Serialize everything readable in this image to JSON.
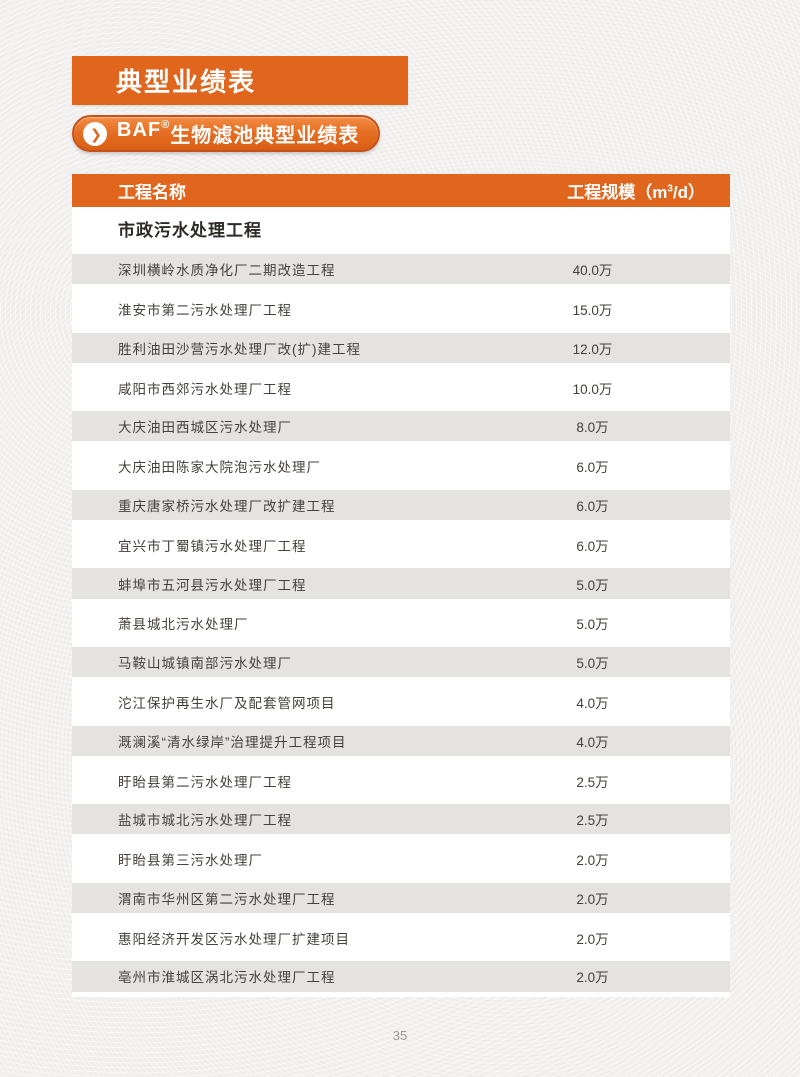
{
  "page": {
    "title": "典型业绩表",
    "subtitle": {
      "brand": "BAF",
      "reg": "®",
      "rest": "生物滤池典型业绩表"
    },
    "page_number": "35"
  },
  "table": {
    "header": {
      "name_label": "工程名称",
      "scale_prefix": "工程规模（m",
      "scale_sup": "3",
      "scale_suffix": "/d）"
    },
    "section": "市政污水处理工程",
    "rows": [
      {
        "name": "深圳横岭水质净化厂二期改造工程",
        "scale": "40.0万"
      },
      {
        "name": "淮安市第二污水处理厂工程",
        "scale": "15.0万"
      },
      {
        "name": "胜利油田沙营污水处理厂改(扩)建工程",
        "scale": "12.0万"
      },
      {
        "name": "咸阳市西郊污水处理厂工程",
        "scale": "10.0万"
      },
      {
        "name": "大庆油田西城区污水处理厂",
        "scale": "8.0万"
      },
      {
        "name": "大庆油田陈家大院泡污水处理厂",
        "scale": "6.0万"
      },
      {
        "name": "重庆唐家桥污水处理厂改扩建工程",
        "scale": "6.0万"
      },
      {
        "name": "宜兴市丁蜀镇污水处理厂工程",
        "scale": "6.0万"
      },
      {
        "name": "蚌埠市五河县污水处理厂工程",
        "scale": "5.0万"
      },
      {
        "name": "萧县城北污水处理厂",
        "scale": "5.0万"
      },
      {
        "name": "马鞍山城镇南部污水处理厂",
        "scale": "5.0万"
      },
      {
        "name": "沱江保护再生水厂及配套管网项目",
        "scale": "4.0万"
      },
      {
        "name": "溉澜溪“清水绿岸”治理提升工程项目",
        "scale": "4.0万"
      },
      {
        "name": "盱眙县第二污水处理厂工程",
        "scale": "2.5万"
      },
      {
        "name": "盐城市城北污水处理厂工程",
        "scale": "2.5万"
      },
      {
        "name": "盱眙县第三污水处理厂",
        "scale": "2.0万"
      },
      {
        "name": "渭南市华州区第二污水处理厂工程",
        "scale": "2.0万"
      },
      {
        "name": "惠阳经济开发区污水处理厂扩建项目",
        "scale": "2.0万"
      },
      {
        "name": "亳州市淮城区涡北污水处理厂工程",
        "scale": "2.0万"
      }
    ]
  },
  "colors": {
    "accent_orange": "#E0661E",
    "pill_border": "#C6521A",
    "row_alt_gray": "#E4E3E1",
    "body_text": "#45403C",
    "paper": "#F2F1EF"
  }
}
